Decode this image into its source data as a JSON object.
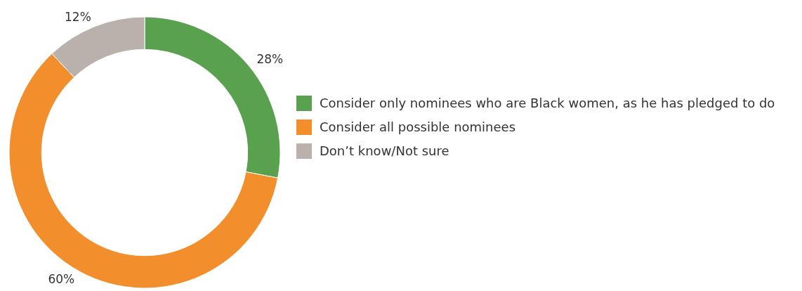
{
  "chart_data": {
    "type": "donut",
    "categories": [
      "Consider only nominees who are Black women, as he has pledged to do",
      "Consider all possible nominees",
      "Don’t know/Not sure"
    ],
    "values": [
      28,
      60,
      12
    ],
    "colors": [
      "#59a14f",
      "#f28e2b",
      "#bab0ac"
    ],
    "value_labels": [
      "28%",
      "60%",
      "12%"
    ],
    "legend": "right"
  }
}
